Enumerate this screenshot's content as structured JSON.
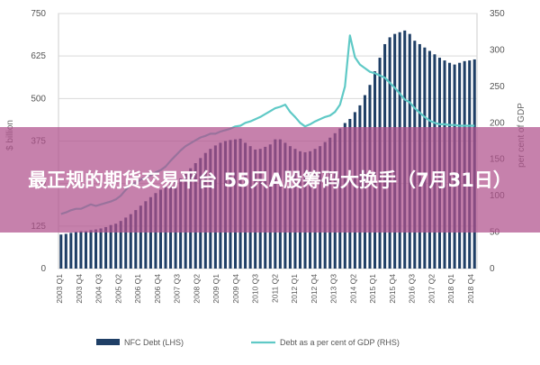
{
  "overlay": {
    "title": "最正规的期货交易平台 55只A股筹码大换手（7月31日）"
  },
  "chart_data": {
    "type": "bar",
    "ylabel_left": "",
    "ylabel_right": "per cent of GDP",
    "ylabel_left_visible": "$ billion",
    "left_ticks": [
      "0",
      "125",
      "250",
      "375",
      "500",
      "625",
      "750"
    ],
    "right_ticks": [
      "0",
      "50",
      "100",
      "150",
      "200",
      "250",
      "300",
      "350"
    ],
    "ylim_left": [
      0,
      750
    ],
    "ylim_right": [
      0,
      350
    ],
    "grid": true,
    "legend_position": "bottom",
    "x_tick_labels": [
      "2003 Q1",
      "2003 Q4",
      "2004 Q3",
      "2005 Q2",
      "2006 Q1",
      "2006 Q4",
      "2007 Q3",
      "2008 Q2",
      "2009 Q1",
      "2009 Q4",
      "2010 Q3",
      "2011 Q2",
      "2012 Q1",
      "2012 Q4",
      "2013 Q3",
      "2014 Q2",
      "2015 Q1",
      "2015 Q4",
      "2016 Q3",
      "2017 Q2",
      "2018 Q1",
      "2018 Q4"
    ],
    "series": [
      {
        "name": "NFC Debt (LHS)",
        "type": "bar",
        "axis": "left",
        "color": "#1f3f66",
        "values": [
          100,
          102,
          105,
          108,
          110,
          110,
          113,
          115,
          118,
          122,
          128,
          132,
          140,
          150,
          160,
          172,
          185,
          198,
          210,
          222,
          232,
          240,
          248,
          255,
          265,
          278,
          295,
          310,
          325,
          340,
          352,
          362,
          370,
          375,
          378,
          380,
          382,
          370,
          360,
          350,
          352,
          358,
          365,
          380,
          380,
          370,
          360,
          352,
          345,
          342,
          345,
          352,
          360,
          372,
          385,
          398,
          412,
          428,
          440,
          460,
          480,
          510,
          540,
          580,
          620,
          660,
          680,
          690,
          695,
          700,
          690,
          670,
          660,
          650,
          640,
          630,
          620,
          612,
          605,
          600,
          605,
          610,
          612,
          615
        ]
      },
      {
        "name": "Debt as a per cent of GDP (RHS)",
        "type": "line",
        "axis": "right",
        "color": "#5fc9c6",
        "values": [
          75,
          77,
          80,
          82,
          82,
          85,
          88,
          86,
          88,
          90,
          92,
          95,
          100,
          108,
          115,
          118,
          122,
          125,
          128,
          132,
          135,
          140,
          148,
          155,
          162,
          168,
          172,
          176,
          180,
          182,
          185,
          185,
          188,
          190,
          192,
          195,
          196,
          200,
          202,
          205,
          208,
          212,
          216,
          220,
          222,
          225,
          215,
          208,
          200,
          195,
          198,
          202,
          205,
          208,
          210,
          215,
          225,
          250,
          320,
          290,
          280,
          275,
          270,
          268,
          265,
          262,
          255,
          248,
          240,
          232,
          228,
          220,
          214,
          208,
          203,
          200,
          198,
          198,
          197,
          197,
          196,
          196,
          196,
          196
        ]
      }
    ]
  }
}
